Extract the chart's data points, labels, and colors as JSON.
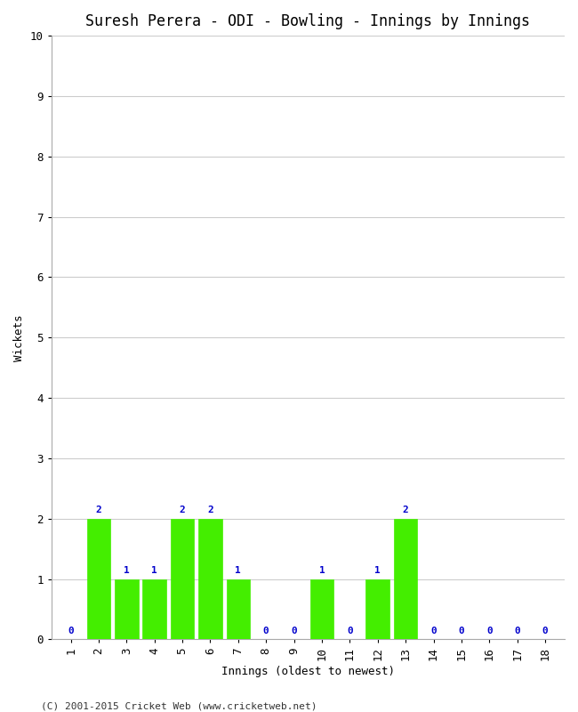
{
  "title": "Suresh Perera - ODI - Bowling - Innings by Innings",
  "xlabel": "Innings (oldest to newest)",
  "ylabel": "Wickets",
  "innings": [
    1,
    2,
    3,
    4,
    5,
    6,
    7,
    8,
    9,
    10,
    11,
    12,
    13,
    14,
    15,
    16,
    17,
    18
  ],
  "wickets": [
    0,
    2,
    1,
    1,
    2,
    2,
    1,
    0,
    0,
    1,
    0,
    1,
    2,
    0,
    0,
    0,
    0,
    0
  ],
  "bar_color": "#44ee00",
  "bar_edge_color": "#44ee00",
  "label_color": "#0000cc",
  "ylim": [
    0,
    10
  ],
  "yticks": [
    0,
    1,
    2,
    3,
    4,
    5,
    6,
    7,
    8,
    9,
    10
  ],
  "background_color": "#ffffff",
  "plot_bg_color": "#ffffff",
  "grid_color": "#cccccc",
  "title_fontsize": 12,
  "axis_label_fontsize": 9,
  "tick_fontsize": 9,
  "label_fontsize": 8,
  "copyright": "(C) 2001-2015 Cricket Web (www.cricketweb.net)"
}
